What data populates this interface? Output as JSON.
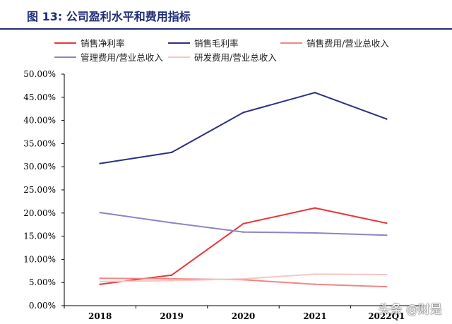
{
  "header": {
    "title": "图 13:  公司盈利水平和费用指标"
  },
  "watermark": "头条 @财是",
  "chart_data": {
    "type": "line",
    "title": "",
    "xlabel": "",
    "ylabel": "",
    "categories": [
      "2018",
      "2019",
      "2020",
      "2021",
      "2022Q1"
    ],
    "ylim": [
      0,
      50
    ],
    "yticks": [
      "0.00%",
      "5.00%",
      "10.00%",
      "15.00%",
      "20.00%",
      "25.00%",
      "30.00%",
      "35.00%",
      "40.00%",
      "45.00%",
      "50.00%"
    ],
    "grid": false,
    "legend": "top",
    "series": [
      {
        "name": "销售净利率",
        "color": "#e8373a",
        "values": [
          4.6,
          6.6,
          17.7,
          21.1,
          17.8
        ]
      },
      {
        "name": "销售毛利率",
        "color": "#2e2f86",
        "values": [
          30.7,
          33.1,
          41.7,
          46.0,
          40.3
        ]
      },
      {
        "name": "销售费用/营业总收入",
        "color": "#f28585",
        "values": [
          5.9,
          5.8,
          5.6,
          4.6,
          4.1
        ]
      },
      {
        "name": "管理费用/营业总收入",
        "color": "#8b86c2",
        "values": [
          20.1,
          17.9,
          15.9,
          15.7,
          15.2
        ]
      },
      {
        "name": "研发费用/营业总收入",
        "color": "#f8c5c5",
        "values": [
          5.2,
          5.4,
          5.8,
          6.8,
          6.7
        ]
      }
    ]
  }
}
